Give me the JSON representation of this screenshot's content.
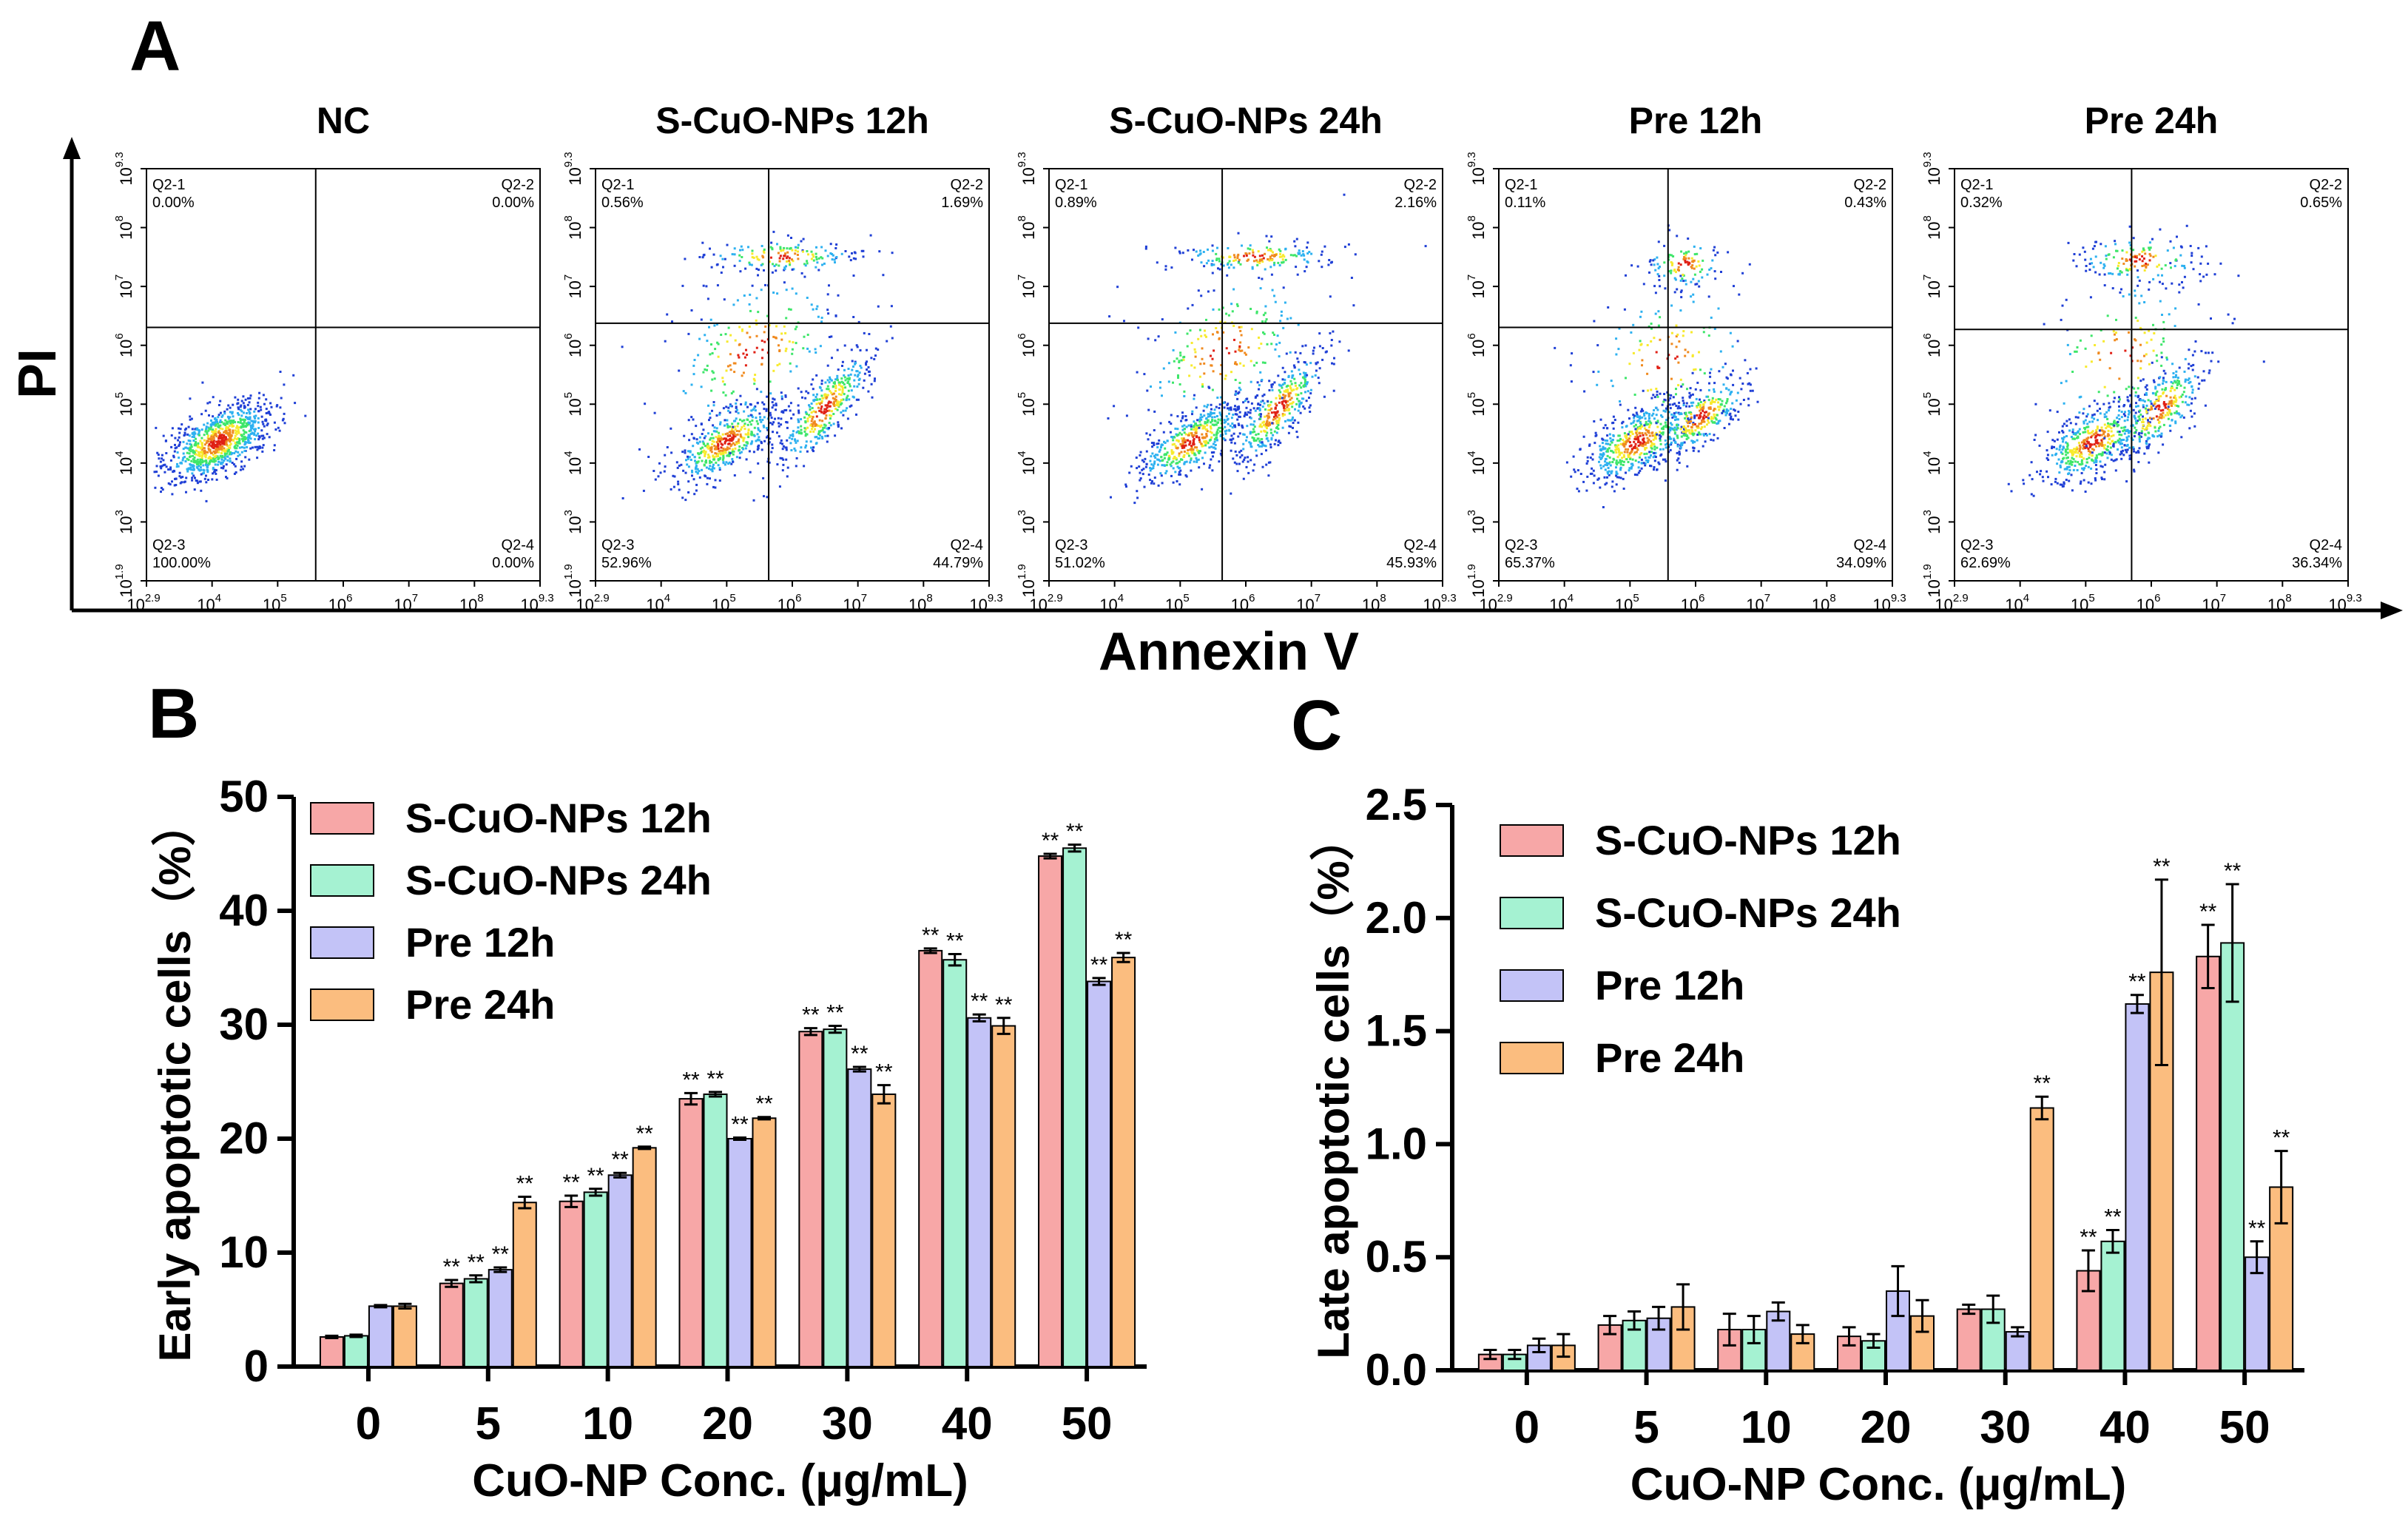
{
  "figure": {
    "panel_labels": [
      "A",
      "B",
      "C"
    ],
    "flow_axis_labels": {
      "y": "PI",
      "x": "Annexin V"
    },
    "flow_tick_labels": [
      "10",
      "10",
      "10",
      "10",
      "10",
      "10",
      "10",
      "10"
    ],
    "flow_tick_exponents": [
      "2.9",
      "3",
      "4",
      "5",
      "6",
      "7",
      "8",
      "9.3"
    ],
    "flow_x_tick_exponents": [
      "2.9",
      "4",
      "5",
      "6",
      "7",
      "8",
      "9.3"
    ],
    "flow_y_tick_exponents": [
      "1.9",
      "3",
      "4",
      "5",
      "6",
      "7",
      "8",
      "9.3"
    ],
    "flow_panels": [
      {
        "title": "NC",
        "q1_label": "Q2-1",
        "q1": "0.00%",
        "q2_label": "Q2-2",
        "q2": "0.00%",
        "q3_label": "Q2-3",
        "q3": "100.00%",
        "q4_label": "Q2-4",
        "q4": "0.00%"
      },
      {
        "title": "S-CuO-NPs 12h",
        "q1_label": "Q2-1",
        "q1": "0.56%",
        "q2_label": "Q2-2",
        "q2": "1.69%",
        "q3_label": "Q2-3",
        "q3": "52.96%",
        "q4_label": "Q2-4",
        "q4": "44.79%"
      },
      {
        "title": "S-CuO-NPs 24h",
        "q1_label": "Q2-1",
        "q1": "0.89%",
        "q2_label": "Q2-2",
        "q2": "2.16%",
        "q3_label": "Q2-3",
        "q3": "51.02%",
        "q4_label": "Q2-4",
        "q4": "45.93%"
      },
      {
        "title": "Pre 12h",
        "q1_label": "Q2-1",
        "q1": "0.11%",
        "q2_label": "Q2-2",
        "q2": "0.43%",
        "q3_label": "Q2-3",
        "q3": "65.37%",
        "q4_label": "Q2-4",
        "q4": "34.09%"
      },
      {
        "title": "Pre 24h",
        "q1_label": "Q2-1",
        "q1": "0.32%",
        "q2_label": "Q2-2",
        "q2": "0.65%",
        "q3_label": "Q2-3",
        "q3": "62.69%",
        "q4_label": "Q2-4",
        "q4": "36.34%"
      }
    ],
    "colors": {
      "S-CuO-NPs 12h": "#f7a7a7",
      "S-CuO-NPs 24h": "#a5f2d2",
      "Pre 12h": "#c3c3f7",
      "Pre 24h": "#fbbd7f"
    },
    "significance_marker": "**"
  },
  "chart_data": [
    {
      "type": "bar",
      "panel": "B",
      "title": "",
      "xlabel": "CuO-NP Conc. (μg/mL)",
      "ylabel": "Early apoptotic cells（%）",
      "categories": [
        "0",
        "5",
        "10",
        "20",
        "30",
        "40",
        "50"
      ],
      "ylim": [
        0,
        50
      ],
      "yticks": [
        0,
        10,
        20,
        30,
        40,
        50
      ],
      "ytick_labels": [
        "0",
        "10",
        "20",
        "30",
        "40",
        "50"
      ],
      "legend": "top-left",
      "series": [
        {
          "name": "S-CuO-NPs 12h",
          "values": [
            2.6,
            7.3,
            14.5,
            23.5,
            29.4,
            36.5,
            44.8
          ],
          "errors": [
            0.1,
            0.3,
            0.5,
            0.5,
            0.3,
            0.2,
            0.2
          ],
          "sig": [
            false,
            true,
            true,
            true,
            true,
            true,
            true
          ]
        },
        {
          "name": "S-CuO-NPs 24h",
          "values": [
            2.7,
            7.7,
            15.3,
            23.9,
            29.6,
            35.7,
            45.5
          ],
          "errors": [
            0.1,
            0.3,
            0.3,
            0.2,
            0.3,
            0.5,
            0.3
          ],
          "sig": [
            false,
            true,
            true,
            true,
            true,
            true,
            true
          ]
        },
        {
          "name": "Pre 12h",
          "values": [
            5.3,
            8.5,
            16.8,
            20.0,
            26.1,
            30.6,
            33.8
          ],
          "errors": [
            0.1,
            0.2,
            0.2,
            0.1,
            0.2,
            0.3,
            0.3
          ],
          "sig": [
            false,
            true,
            true,
            true,
            true,
            true,
            true
          ]
        },
        {
          "name": "Pre 24h",
          "values": [
            5.3,
            14.4,
            19.2,
            21.8,
            23.9,
            29.9,
            35.9
          ],
          "errors": [
            0.2,
            0.5,
            0.1,
            0.1,
            0.8,
            0.7,
            0.4
          ],
          "sig": [
            false,
            true,
            true,
            true,
            true,
            true,
            true
          ]
        }
      ]
    },
    {
      "type": "bar",
      "panel": "C",
      "title": "",
      "xlabel": "CuO-NP Conc. (μg/mL)",
      "ylabel": "Late apoptotic cells（%）",
      "categories": [
        "0",
        "5",
        "10",
        "20",
        "30",
        "40",
        "50"
      ],
      "ylim": [
        0,
        2.5
      ],
      "yticks": [
        0,
        0.5,
        1.0,
        1.5,
        2.0,
        2.5
      ],
      "ytick_labels": [
        "0.0",
        "0.5",
        "1.0",
        "1.5",
        "2.0",
        "2.5"
      ],
      "legend": "top-left",
      "series": [
        {
          "name": "S-CuO-NPs 12h",
          "values": [
            0.07,
            0.2,
            0.18,
            0.15,
            0.27,
            0.44,
            1.83
          ],
          "errors": [
            0.02,
            0.04,
            0.07,
            0.04,
            0.02,
            0.09,
            0.14
          ],
          "sig": [
            false,
            false,
            false,
            false,
            false,
            true,
            true
          ]
        },
        {
          "name": "S-CuO-NPs 24h",
          "values": [
            0.07,
            0.22,
            0.18,
            0.13,
            0.27,
            0.57,
            1.89
          ],
          "errors": [
            0.02,
            0.04,
            0.06,
            0.03,
            0.06,
            0.05,
            0.26
          ],
          "sig": [
            false,
            false,
            false,
            false,
            false,
            true,
            true
          ]
        },
        {
          "name": "Pre 12h",
          "values": [
            0.11,
            0.23,
            0.26,
            0.35,
            0.17,
            1.62,
            0.5
          ],
          "errors": [
            0.03,
            0.05,
            0.04,
            0.11,
            0.02,
            0.04,
            0.07
          ],
          "sig": [
            false,
            false,
            false,
            false,
            false,
            true,
            true
          ]
        },
        {
          "name": "Pre 24h",
          "values": [
            0.11,
            0.28,
            0.16,
            0.24,
            1.16,
            1.76,
            0.81
          ],
          "errors": [
            0.05,
            0.1,
            0.04,
            0.07,
            0.05,
            0.41,
            0.16
          ],
          "sig": [
            false,
            false,
            false,
            false,
            true,
            true,
            true
          ]
        }
      ]
    }
  ]
}
